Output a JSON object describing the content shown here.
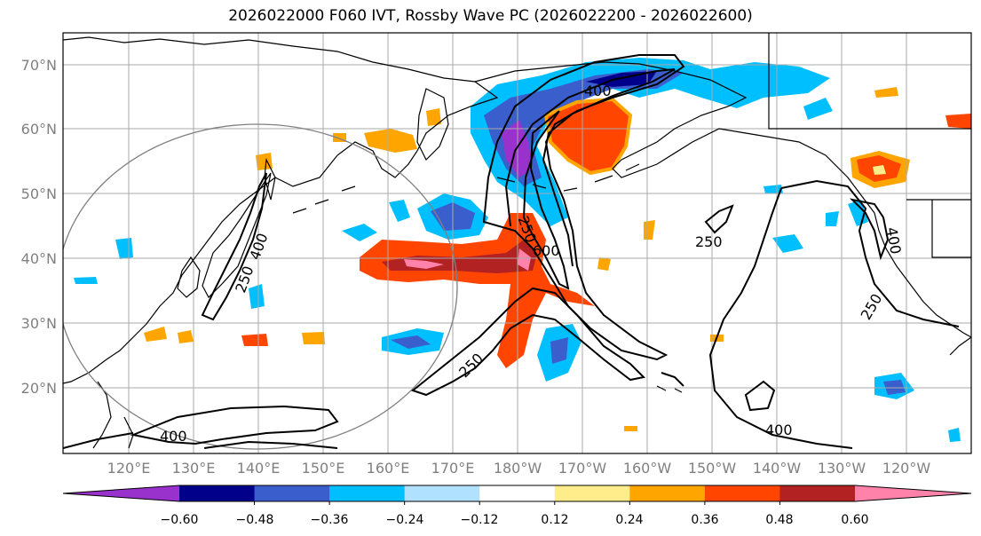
{
  "title": "2026022000 F060 IVT, Rossby Wave PC (2026022200 - 2026022600)",
  "lat_labels": [
    "70°N",
    "60°N",
    "50°N",
    "40°N",
    "30°N",
    "20°N"
  ],
  "lon_labels": [
    "120°E",
    "130°E",
    "140°E",
    "150°E",
    "160°E",
    "170°E",
    "180°W",
    "170°W",
    "160°W",
    "150°W",
    "140°W",
    "130°W",
    "120°W"
  ],
  "colorbar": {
    "colors": [
      "#9932CC",
      "#00008B",
      "#3A5FCD",
      "#00BFFF",
      "#B0E2FF",
      "#FFFFFF",
      "#FFEC8B",
      "#FFA500",
      "#FF4500",
      "#B22222",
      "#FF82AB"
    ],
    "tick_labels": [
      "−0.60",
      "−0.48",
      "−0.36",
      "−0.24",
      "−0.12",
      "0.12",
      "0.24",
      "0.36",
      "0.48",
      "0.60"
    ]
  },
  "contour_labels": [
    "400",
    "250",
    "600",
    "250",
    "400",
    "250",
    "250",
    "400",
    "400",
    "250",
    "400"
  ]
}
